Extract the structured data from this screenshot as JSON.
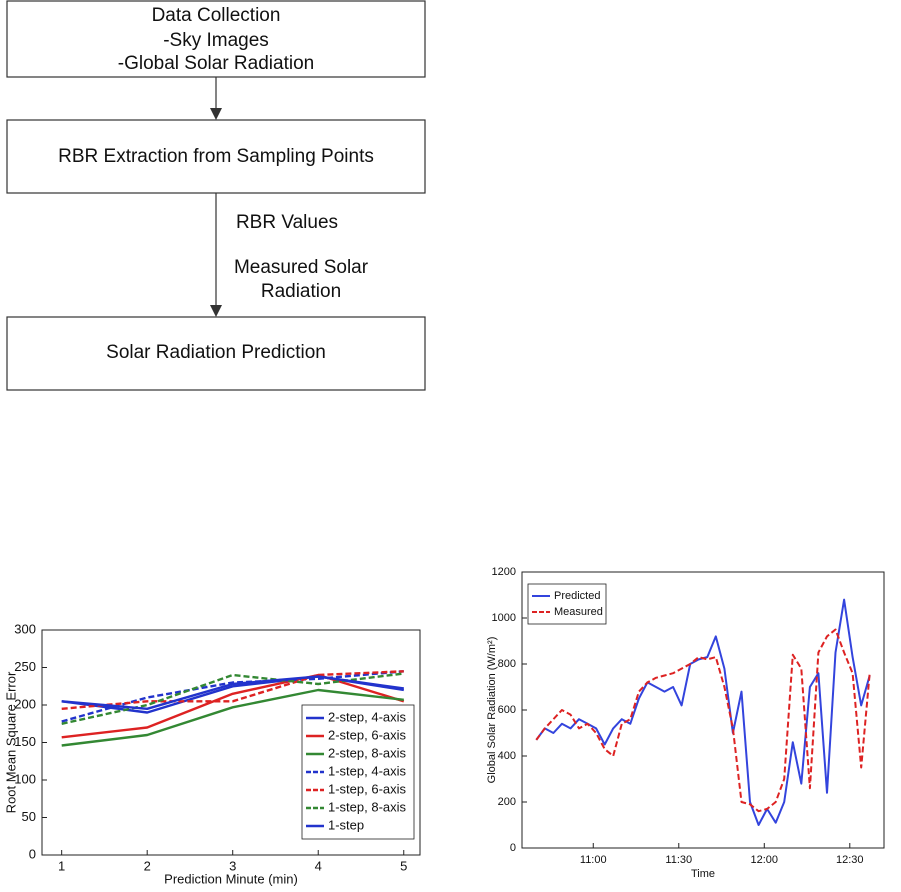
{
  "diagram": {
    "nodes": [
      {
        "lines": [
          "Data Collection",
          "-Sky Images",
          "-Global Solar Radiation"
        ]
      },
      {
        "lines": [
          "RBR Extraction from Sampling Points"
        ]
      },
      {
        "lines": [
          "Solar Radiation Prediction"
        ]
      }
    ],
    "edge_labels": [
      "RBR Values",
      "Measured Solar",
      "Radiation"
    ]
  },
  "chart_data": [
    {
      "type": "line",
      "xlabel": "Prediction Minute (min)",
      "ylabel": "Root Mean Square Error",
      "x": [
        1,
        2,
        3,
        4,
        5
      ],
      "xlim": [
        0.77,
        5.19
      ],
      "xticks": [
        1,
        2,
        3,
        4,
        5
      ],
      "ylim": [
        0,
        300
      ],
      "yticks": [
        0,
        50,
        100,
        150,
        200,
        250,
        300
      ],
      "grid": false,
      "legend": "lower right",
      "series": [
        {
          "name": "2-step, 4-axis",
          "color": "#2233cc",
          "style": "solid",
          "values": [
            205,
            190,
            225,
            238,
            220
          ]
        },
        {
          "name": "2-step, 6-axis",
          "color": "#dd2222",
          "style": "solid",
          "values": [
            157,
            170,
            215,
            240,
            205
          ]
        },
        {
          "name": "2-step, 8-axis",
          "color": "#338833",
          "style": "solid",
          "values": [
            146,
            160,
            197,
            220,
            207
          ]
        },
        {
          "name": "1-step, 4-axis",
          "color": "#2233cc",
          "style": "dashed",
          "values": [
            178,
            210,
            230,
            235,
            245
          ]
        },
        {
          "name": "1-step, 6-axis",
          "color": "#dd2222",
          "style": "dashed",
          "values": [
            195,
            205,
            205,
            240,
            245
          ]
        },
        {
          "name": "1-step, 8-axis",
          "color": "#338833",
          "style": "dashed",
          "values": [
            175,
            200,
            240,
            228,
            242
          ]
        },
        {
          "name": "1-step",
          "color": "#2233cc",
          "style": "solid",
          "values": [
            205,
            195,
            228,
            238,
            222
          ]
        }
      ]
    },
    {
      "type": "line",
      "xlabel": "Time",
      "ylabel": "Global Solar Radiation (W/m²)",
      "x": [
        640,
        643,
        646,
        649,
        652,
        655,
        658,
        661,
        664,
        667,
        670,
        673,
        676,
        679,
        682,
        685,
        688,
        691,
        694,
        697,
        700,
        703,
        706,
        709,
        712,
        715,
        718,
        721,
        724,
        727,
        730,
        733,
        736,
        739,
        742,
        745,
        748,
        751,
        754,
        757
      ],
      "xlim": [
        635,
        762
      ],
      "xticks": [
        {
          "value": 660,
          "label": "11:00"
        },
        {
          "value": 690,
          "label": "11:30"
        },
        {
          "value": 720,
          "label": "12:00"
        },
        {
          "value": 750,
          "label": "12:30"
        }
      ],
      "ylim": [
        0,
        1200
      ],
      "yticks": [
        0,
        200,
        400,
        600,
        800,
        1000,
        1200
      ],
      "grid": false,
      "legend": "upper left",
      "series": [
        {
          "name": "Predicted",
          "color": "#3344dd",
          "style": "solid",
          "values": [
            470,
            520,
            500,
            540,
            520,
            560,
            540,
            520,
            450,
            520,
            560,
            540,
            650,
            720,
            700,
            680,
            700,
            620,
            800,
            820,
            830,
            920,
            780,
            500,
            680,
            200,
            100,
            170,
            110,
            200,
            460,
            280,
            700,
            760,
            240,
            850,
            1080,
            830,
            620,
            750
          ]
        },
        {
          "name": "Measured",
          "color": "#dd2222",
          "style": "dashed",
          "values": [
            470,
            520,
            560,
            600,
            580,
            520,
            540,
            500,
            430,
            400,
            540,
            560,
            680,
            720,
            740,
            750,
            760,
            780,
            800,
            830,
            820,
            830,
            700,
            520,
            200,
            190,
            160,
            170,
            200,
            300,
            840,
            780,
            260,
            850,
            920,
            950,
            850,
            760,
            350,
            760
          ]
        }
      ]
    }
  ]
}
